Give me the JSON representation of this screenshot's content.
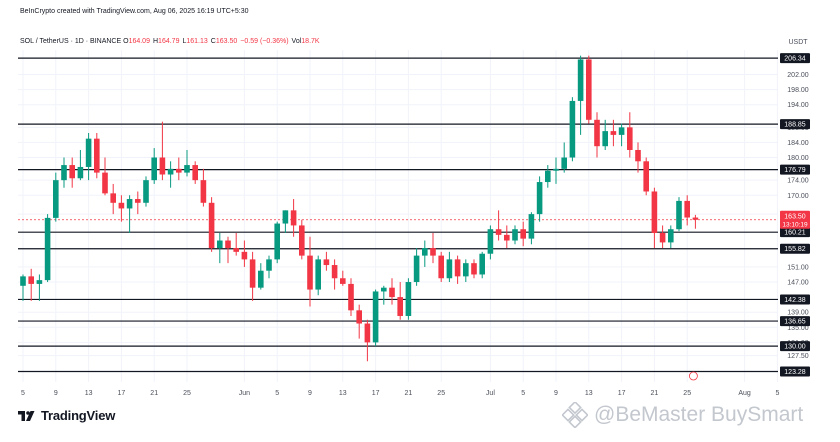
{
  "header": {
    "credit": "BeInCrypto created with TradingView.com, Aug 06, 2025 16:19 UTC+5:30",
    "symbol": "SOL / TetherUS · 1D · BINANCE",
    "ohlc": [
      {
        "label": "O",
        "value": "164.09"
      },
      {
        "label": "H",
        "value": "164.79"
      },
      {
        "label": "L",
        "value": "161.13"
      },
      {
        "label": "C",
        "value": "163.50"
      },
      {
        "label": "",
        "value": "−0.59 (−0.36%)"
      },
      {
        "label": "Vol",
        "value": "18.7K"
      }
    ]
  },
  "branding": {
    "logo_text": "TradingView",
    "watermark": "BeMaster BuySmart"
  },
  "colors": {
    "up": "#089981",
    "down": "#f23645",
    "level_line": "#131722",
    "grid": "#f0f3fa",
    "text": "#131722",
    "axis_text": "#4a4f5a"
  },
  "chart_data": {
    "type": "candlestick",
    "symbol": "SOL / TetherUS",
    "interval": "1D",
    "exchange": "BINANCE",
    "currency": "USDT",
    "ylim": [
      120.5,
      208.5
    ],
    "y_ticks": [
      202.0,
      198.0,
      194.0,
      188.0,
      184.0,
      180.0,
      174.0,
      170.0,
      165.0,
      151.0,
      147.0,
      139.0,
      135.0,
      131.0,
      127.5
    ],
    "x_ticks": [
      {
        "label": "5",
        "i": 0
      },
      {
        "label": "9",
        "i": 4
      },
      {
        "label": "13",
        "i": 8
      },
      {
        "label": "17",
        "i": 12
      },
      {
        "label": "21",
        "i": 16
      },
      {
        "label": "25",
        "i": 20
      },
      {
        "label": "Jun",
        "i": 27
      },
      {
        "label": "5",
        "i": 31
      },
      {
        "label": "9",
        "i": 35
      },
      {
        "label": "13",
        "i": 39
      },
      {
        "label": "17",
        "i": 43
      },
      {
        "label": "21",
        "i": 47
      },
      {
        "label": "25",
        "i": 51
      },
      {
        "label": "Jul",
        "i": 57
      },
      {
        "label": "5",
        "i": 61
      },
      {
        "label": "9",
        "i": 65
      },
      {
        "label": "13",
        "i": 69
      },
      {
        "label": "17",
        "i": 73
      },
      {
        "label": "21",
        "i": 77
      },
      {
        "label": "25",
        "i": 81
      },
      {
        "label": "Aug",
        "i": 88
      },
      {
        "label": "5",
        "i": 92
      }
    ],
    "levels": [
      206.34,
      188.85,
      176.79,
      160.21,
      155.82,
      142.38,
      136.65,
      130.0,
      123.28
    ],
    "current_price": {
      "value": "163.50",
      "countdown": "13:10:19"
    },
    "candles": [
      {
        "o": 146.0,
        "h": 149.0,
        "l": 142.0,
        "c": 148.5
      },
      {
        "o": 148.5,
        "h": 150.5,
        "l": 142.0,
        "c": 146.5
      },
      {
        "o": 146.5,
        "h": 149.0,
        "l": 142.0,
        "c": 147.5
      },
      {
        "o": 147.5,
        "h": 165.0,
        "l": 147.0,
        "c": 164.0
      },
      {
        "o": 164.0,
        "h": 176.0,
        "l": 163.0,
        "c": 174.0
      },
      {
        "o": 174.0,
        "h": 180.0,
        "l": 172.0,
        "c": 178.0
      },
      {
        "o": 178.0,
        "h": 180.0,
        "l": 172.0,
        "c": 174.5
      },
      {
        "o": 174.5,
        "h": 182.0,
        "l": 174.0,
        "c": 177.5
      },
      {
        "o": 177.5,
        "h": 186.5,
        "l": 174.0,
        "c": 185.0
      },
      {
        "o": 185.0,
        "h": 186.5,
        "l": 174.5,
        "c": 176.0
      },
      {
        "o": 176.0,
        "h": 180.0,
        "l": 170.0,
        "c": 170.5
      },
      {
        "o": 170.5,
        "h": 173.0,
        "l": 165.0,
        "c": 168.0
      },
      {
        "o": 168.0,
        "h": 170.0,
        "l": 163.0,
        "c": 166.5
      },
      {
        "o": 166.5,
        "h": 170.0,
        "l": 160.0,
        "c": 169.0
      },
      {
        "o": 169.0,
        "h": 171.0,
        "l": 165.0,
        "c": 168.0
      },
      {
        "o": 168.0,
        "h": 175.0,
        "l": 167.0,
        "c": 174.0
      },
      {
        "o": 174.0,
        "h": 182.5,
        "l": 173.0,
        "c": 180.0
      },
      {
        "o": 180.0,
        "h": 189.5,
        "l": 174.0,
        "c": 175.5
      },
      {
        "o": 175.5,
        "h": 179.0,
        "l": 172.0,
        "c": 177.0
      },
      {
        "o": 177.0,
        "h": 180.0,
        "l": 174.0,
        "c": 176.0
      },
      {
        "o": 176.0,
        "h": 182.0,
        "l": 175.0,
        "c": 178.0
      },
      {
        "o": 178.0,
        "h": 179.0,
        "l": 173.0,
        "c": 174.0
      },
      {
        "o": 174.0,
        "h": 177.0,
        "l": 167.0,
        "c": 168.0
      },
      {
        "o": 168.0,
        "h": 169.5,
        "l": 155.0,
        "c": 156.0
      },
      {
        "o": 156.0,
        "h": 160.0,
        "l": 152.0,
        "c": 158.0
      },
      {
        "o": 158.0,
        "h": 159.0,
        "l": 152.0,
        "c": 156.0
      },
      {
        "o": 156.0,
        "h": 160.0,
        "l": 154.0,
        "c": 155.0
      },
      {
        "o": 155.0,
        "h": 158.0,
        "l": 151.0,
        "c": 153.0
      },
      {
        "o": 153.0,
        "h": 155.0,
        "l": 142.0,
        "c": 145.5
      },
      {
        "o": 145.5,
        "h": 152.0,
        "l": 145.0,
        "c": 150.0
      },
      {
        "o": 150.0,
        "h": 154.0,
        "l": 148.0,
        "c": 153.0
      },
      {
        "o": 153.0,
        "h": 163.0,
        "l": 152.0,
        "c": 162.5
      },
      {
        "o": 162.5,
        "h": 166.0,
        "l": 160.0,
        "c": 166.0
      },
      {
        "o": 166.0,
        "h": 169.0,
        "l": 159.0,
        "c": 162.0
      },
      {
        "o": 162.0,
        "h": 163.5,
        "l": 153.0,
        "c": 154.0
      },
      {
        "o": 154.0,
        "h": 159.0,
        "l": 140.5,
        "c": 145.0
      },
      {
        "o": 145.0,
        "h": 154.0,
        "l": 143.5,
        "c": 153.0
      },
      {
        "o": 153.0,
        "h": 155.0,
        "l": 150.0,
        "c": 151.5
      },
      {
        "o": 151.5,
        "h": 153.0,
        "l": 145.0,
        "c": 148.0
      },
      {
        "o": 148.0,
        "h": 150.0,
        "l": 146.0,
        "c": 146.5
      },
      {
        "o": 146.5,
        "h": 148.0,
        "l": 138.0,
        "c": 139.5
      },
      {
        "o": 139.5,
        "h": 141.0,
        "l": 132.0,
        "c": 136.0
      },
      {
        "o": 136.0,
        "h": 137.0,
        "l": 126.0,
        "c": 131.0
      },
      {
        "o": 131.0,
        "h": 145.0,
        "l": 130.0,
        "c": 144.5
      },
      {
        "o": 144.5,
        "h": 146.0,
        "l": 141.0,
        "c": 145.5
      },
      {
        "o": 145.5,
        "h": 148.0,
        "l": 141.0,
        "c": 143.0
      },
      {
        "o": 143.0,
        "h": 147.0,
        "l": 137.0,
        "c": 138.0
      },
      {
        "o": 138.0,
        "h": 148.0,
        "l": 137.0,
        "c": 147.0
      },
      {
        "o": 147.0,
        "h": 156.0,
        "l": 146.0,
        "c": 154.0
      },
      {
        "o": 154.0,
        "h": 158.0,
        "l": 151.0,
        "c": 156.0
      },
      {
        "o": 156.0,
        "h": 160.0,
        "l": 152.0,
        "c": 154.0
      },
      {
        "o": 154.0,
        "h": 155.0,
        "l": 147.0,
        "c": 148.0
      },
      {
        "o": 148.0,
        "h": 155.0,
        "l": 147.0,
        "c": 153.0
      },
      {
        "o": 153.0,
        "h": 154.0,
        "l": 146.5,
        "c": 148.5
      },
      {
        "o": 148.5,
        "h": 153.0,
        "l": 147.0,
        "c": 152.0
      },
      {
        "o": 152.0,
        "h": 153.0,
        "l": 148.0,
        "c": 149.0
      },
      {
        "o": 149.0,
        "h": 155.0,
        "l": 148.0,
        "c": 154.5
      },
      {
        "o": 154.5,
        "h": 162.0,
        "l": 153.0,
        "c": 161.0
      },
      {
        "o": 161.0,
        "h": 166.0,
        "l": 158.0,
        "c": 159.5
      },
      {
        "o": 159.5,
        "h": 162.0,
        "l": 156.0,
        "c": 158.0
      },
      {
        "o": 158.0,
        "h": 162.0,
        "l": 157.0,
        "c": 161.0
      },
      {
        "o": 161.0,
        "h": 163.0,
        "l": 156.5,
        "c": 158.5
      },
      {
        "o": 158.5,
        "h": 165.5,
        "l": 157.0,
        "c": 165.0
      },
      {
        "o": 165.0,
        "h": 175.0,
        "l": 163.0,
        "c": 173.5
      },
      {
        "o": 173.5,
        "h": 178.0,
        "l": 172.0,
        "c": 176.5
      },
      {
        "o": 176.5,
        "h": 180.0,
        "l": 173.0,
        "c": 177.0
      },
      {
        "o": 177.0,
        "h": 184.0,
        "l": 176.0,
        "c": 180.0
      },
      {
        "o": 180.0,
        "h": 196.0,
        "l": 179.0,
        "c": 195.0
      },
      {
        "o": 195.0,
        "h": 207.0,
        "l": 186.0,
        "c": 206.0
      },
      {
        "o": 206.0,
        "h": 207.0,
        "l": 189.0,
        "c": 190.0
      },
      {
        "o": 190.0,
        "h": 192.0,
        "l": 180.0,
        "c": 183.0
      },
      {
        "o": 183.0,
        "h": 190.0,
        "l": 182.0,
        "c": 187.0
      },
      {
        "o": 187.0,
        "h": 190.0,
        "l": 183.0,
        "c": 186.0
      },
      {
        "o": 186.0,
        "h": 189.0,
        "l": 183.0,
        "c": 188.0
      },
      {
        "o": 188.0,
        "h": 192.0,
        "l": 180.0,
        "c": 182.0
      },
      {
        "o": 182.0,
        "h": 184.0,
        "l": 176.0,
        "c": 179.0
      },
      {
        "o": 179.0,
        "h": 180.0,
        "l": 170.0,
        "c": 171.0
      },
      {
        "o": 171.0,
        "h": 172.0,
        "l": 156.0,
        "c": 160.0
      },
      {
        "o": 160.0,
        "h": 162.0,
        "l": 156.0,
        "c": 157.5
      },
      {
        "o": 157.5,
        "h": 162.0,
        "l": 156.0,
        "c": 161.0
      },
      {
        "o": 161.0,
        "h": 169.5,
        "l": 160.5,
        "c": 168.5
      },
      {
        "o": 168.5,
        "h": 170.0,
        "l": 162.0,
        "c": 164.1
      },
      {
        "o": 164.09,
        "h": 164.79,
        "l": 161.13,
        "c": 163.5
      }
    ]
  }
}
